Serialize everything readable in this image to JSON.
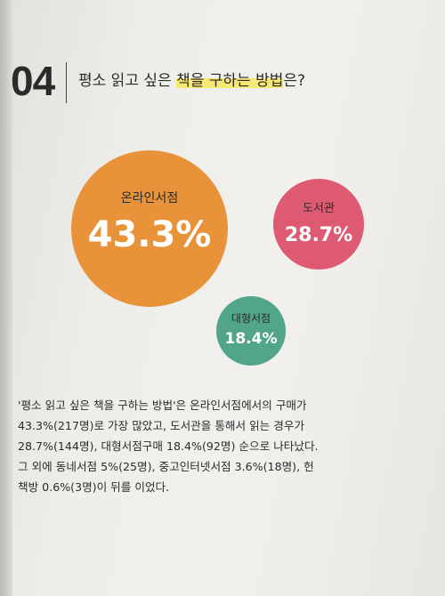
{
  "question": {
    "number": "04",
    "title_before": "평소 읽고 싶은 ",
    "title_highlight": "책을 구하는 방법",
    "title_after": "은?"
  },
  "colors": {
    "online": "#e8923a",
    "library": "#de5a72",
    "bigstore": "#52a58b",
    "highlight": "#f7e873",
    "text": "#2b2b2b"
  },
  "chart_data": {
    "type": "bubble",
    "unit": "%",
    "items": [
      {
        "label": "온라인서점",
        "value": 43.3,
        "display": "43.3%",
        "color": "#e8923a"
      },
      {
        "label": "도서관",
        "value": 28.7,
        "display": "28.7%",
        "color": "#de5a72"
      },
      {
        "label": "대형서점",
        "value": 18.4,
        "display": "18.4%",
        "color": "#52a58b"
      }
    ]
  },
  "body_lines": [
    "'평소 읽고 싶은 책을 구하는 방법'은 온라인서점에서의 구매가",
    "43.3%(217명)로 가장 많았고, 도서관을 통해서 읽는 경우가",
    "28.7%(144명), 대형서점구매 18.4%(92명) 순으로 나타났다.",
    "그 외에 동네서점 5%(25명), 중고인터넷서점 3.6%(18명), 헌",
    "책방 0.6%(3명)이 뒤를 이었다."
  ]
}
